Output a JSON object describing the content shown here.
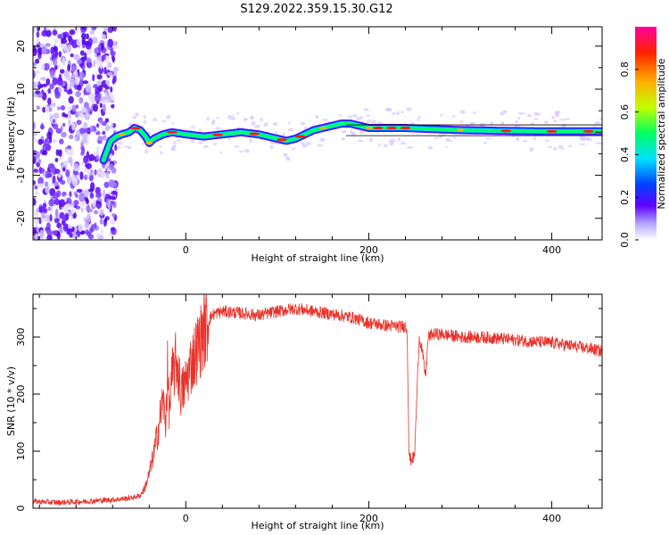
{
  "title": "S129.2022.359.15.30.G12",
  "chart_data": [
    {
      "type": "heatmap",
      "xlabel": "Height of straight line (km)",
      "ylabel": "Frequency (Hz)",
      "xlim": [
        -167,
        455
      ],
      "ylim": [
        -25,
        24.5
      ],
      "xticks": [
        0,
        200,
        400
      ],
      "yticks": [
        -20,
        -10,
        0,
        10,
        20
      ],
      "grid": false,
      "colorbar": {
        "label": "Normalized spectral amplitude",
        "range": [
          0,
          1
        ],
        "ticks": [
          "0.0",
          "0.2",
          "0.4",
          "0.6",
          "0.8"
        ],
        "colors": [
          "#ffffff",
          "#b0a0ff",
          "#6000ff",
          "#0040ff",
          "#00e0ff",
          "#00ff60",
          "#c0ff00",
          "#ffb000",
          "#ff2000",
          "#ff00a0"
        ]
      },
      "noise_region_x": [
        -167,
        -82
      ],
      "ridge": {
        "x": [
          -90,
          -82,
          -76,
          -70,
          -62,
          -56,
          -50,
          -44,
          -40,
          -35,
          -25,
          -15,
          0,
          20,
          40,
          60,
          80,
          100,
          110,
          120,
          130,
          140,
          150,
          160,
          170,
          180,
          190,
          200,
          220,
          240,
          260,
          300,
          350,
          400,
          455
        ],
        "y": [
          -6.5,
          -2.0,
          -1.0,
          -0.5,
          0.0,
          1.0,
          0.5,
          -1.0,
          -2.5,
          -1.5,
          -0.5,
          0.0,
          -0.5,
          -1.0,
          -0.5,
          0.0,
          -0.5,
          -1.5,
          -2.0,
          -1.5,
          -0.5,
          0.5,
          1.0,
          1.5,
          2.0,
          2.0,
          1.5,
          1.0,
          1.0,
          1.0,
          0.8,
          0.5,
          0.3,
          0.2,
          0.2
        ]
      }
    },
    {
      "type": "line",
      "xlabel": "Height of straight line (km)",
      "ylabel": "SNR (10 * v/v)",
      "xlim": [
        -167,
        455
      ],
      "ylim": [
        0,
        375
      ],
      "xticks": [
        0,
        200,
        400
      ],
      "yticks": [
        0,
        100,
        200,
        300
      ],
      "grid": false,
      "series": [
        {
          "color": "#e8322a",
          "x": [
            -167,
            -140,
            -110,
            -80,
            -60,
            -50,
            -45,
            -40,
            -35,
            -30,
            -25,
            -22,
            -20,
            -18,
            -15,
            -10,
            -5,
            0,
            5,
            10,
            15,
            20,
            25,
            30,
            40,
            60,
            80,
            100,
            120,
            140,
            160,
            180,
            200,
            220,
            235,
            240,
            242,
            244,
            246,
            250,
            255,
            258,
            262,
            265,
            270,
            280,
            300,
            320,
            340,
            360,
            380,
            400,
            420,
            440,
            455
          ],
          "y": [
            12,
            10,
            12,
            15,
            18,
            22,
            35,
            60,
            95,
            140,
            190,
            150,
            240,
            170,
            230,
            260,
            200,
            220,
            250,
            270,
            290,
            310,
            330,
            340,
            345,
            342,
            338,
            345,
            350,
            345,
            340,
            335,
            325,
            320,
            318,
            320,
            310,
            90,
            85,
            90,
            300,
            280,
            230,
            300,
            305,
            305,
            300,
            300,
            298,
            295,
            292,
            290,
            285,
            280,
            275
          ]
        }
      ]
    }
  ]
}
